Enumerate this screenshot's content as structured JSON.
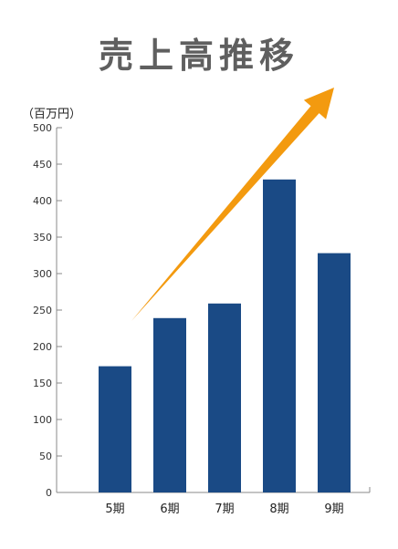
{
  "chart_data": {
    "type": "bar",
    "title": "売上高推移",
    "ylabel": "（百万円）",
    "xlabel": "",
    "categories": [
      "5期",
      "6期",
      "7期",
      "8期",
      "9期"
    ],
    "values": [
      173,
      239,
      259,
      429,
      328
    ],
    "ylim": [
      0,
      500
    ],
    "yticks": [
      0,
      50,
      100,
      150,
      200,
      250,
      300,
      350,
      400,
      450,
      500
    ],
    "grid": false,
    "legend": "none",
    "annotations": [
      {
        "kind": "trend-arrow",
        "icon": "upward-arrow-icon",
        "from": [
          0.3,
          235
        ],
        "to": [
          4.0,
          555
        ]
      }
    ]
  },
  "colors": {
    "bar": "#1a4a85",
    "arrow": "#f39a0f",
    "axis": "#888888",
    "title": "#5f5f5f"
  }
}
